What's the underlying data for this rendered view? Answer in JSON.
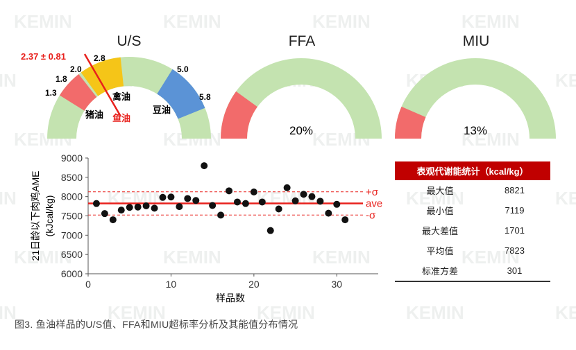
{
  "watermark": "KEMIN",
  "gauges": {
    "us": {
      "title": "U/S",
      "highlight": "2.37 ± 0.81",
      "highlight_color": "#e8201c",
      "ticks": [
        "1.3",
        "1.8",
        "2.0",
        "2.8",
        "5.0",
        "5.8"
      ],
      "labels": {
        "pork": "猪油",
        "fish": "鱼油",
        "poultry": "禽油",
        "soy": "豆油"
      },
      "colors": {
        "base": "#c4e3b0",
        "red": "#f26b6b",
        "yellow": "#f5c518",
        "blue": "#5b93d6"
      }
    },
    "ffa": {
      "title": "FFA",
      "value": "20%",
      "fill_fraction": 0.2
    },
    "miu": {
      "title": "MIU",
      "value": "13%",
      "fill_fraction": 0.13
    }
  },
  "chart_data": {
    "type": "scatter",
    "ylabel": "21日龄以下肉鸡AME (kJcal/kg)",
    "xlabel": "样品数",
    "xlim": [
      0,
      35
    ],
    "ylim": [
      6000,
      9000
    ],
    "xticks": [
      0,
      10,
      20,
      30
    ],
    "yticks": [
      6000,
      6500,
      7000,
      7500,
      8000,
      8500,
      9000
    ],
    "grid": false,
    "points": [
      {
        "x": 1,
        "y": 7820
      },
      {
        "x": 2,
        "y": 7560
      },
      {
        "x": 3,
        "y": 7400
      },
      {
        "x": 4,
        "y": 7650
      },
      {
        "x": 5,
        "y": 7720
      },
      {
        "x": 6,
        "y": 7730
      },
      {
        "x": 7,
        "y": 7760
      },
      {
        "x": 8,
        "y": 7700
      },
      {
        "x": 9,
        "y": 7980
      },
      {
        "x": 10,
        "y": 7990
      },
      {
        "x": 11,
        "y": 7740
      },
      {
        "x": 12,
        "y": 7950
      },
      {
        "x": 13,
        "y": 7900
      },
      {
        "x": 14,
        "y": 8800
      },
      {
        "x": 15,
        "y": 7770
      },
      {
        "x": 16,
        "y": 7520
      },
      {
        "x": 17,
        "y": 8150
      },
      {
        "x": 18,
        "y": 7860
      },
      {
        "x": 19,
        "y": 7820
      },
      {
        "x": 20,
        "y": 8120
      },
      {
        "x": 21,
        "y": 7860
      },
      {
        "x": 22,
        "y": 7120
      },
      {
        "x": 23,
        "y": 7680
      },
      {
        "x": 24,
        "y": 8230
      },
      {
        "x": 25,
        "y": 7890
      },
      {
        "x": 26,
        "y": 8060
      },
      {
        "x": 27,
        "y": 8000
      },
      {
        "x": 28,
        "y": 7880
      },
      {
        "x": 29,
        "y": 7570
      },
      {
        "x": 30,
        "y": 7800
      },
      {
        "x": 31,
        "y": 7400
      }
    ],
    "reference_lines": [
      {
        "label": "+σ",
        "y": 8124,
        "style": "dashed"
      },
      {
        "label": "ave",
        "y": 7823,
        "style": "solid"
      },
      {
        "label": "-σ",
        "y": 7522,
        "style": "dashed"
      }
    ],
    "line_color": "#e8201c"
  },
  "stats": {
    "title": "表观代谢能统计（kcal/kg）",
    "rows": [
      {
        "label": "最大值",
        "value": "8821"
      },
      {
        "label": "最小值",
        "value": "7119"
      },
      {
        "label": "最大差值",
        "value": "1701"
      },
      {
        "label": "平均值",
        "value": "7823"
      },
      {
        "label": "标准方差",
        "value": "301"
      }
    ]
  },
  "caption": "图3. 鱼油样品的U/S值、FFA和MIU超标率分析及其能值分布情况"
}
